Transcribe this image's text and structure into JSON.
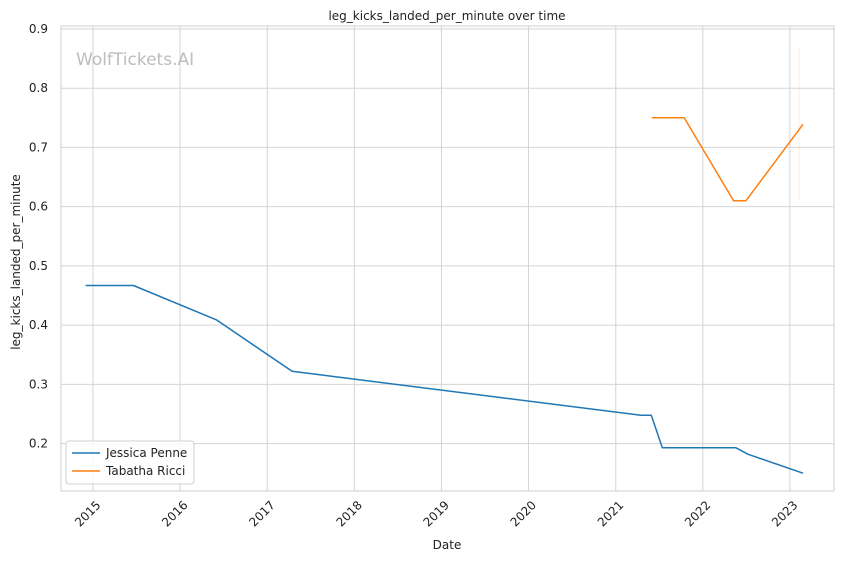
{
  "chart_data": {
    "type": "line",
    "title": "leg_kicks_landed_per_minute over time",
    "xlabel": "Date",
    "ylabel": "leg_kicks_landed_per_minute",
    "watermark": "WolfTickets.AI",
    "xlim": [
      "2014-08-20",
      "2023-07-05"
    ],
    "ylim": [
      0.12,
      0.905
    ],
    "x_ticks": [
      "2015",
      "2016",
      "2017",
      "2018",
      "2019",
      "2020",
      "2021",
      "2022",
      "2023"
    ],
    "y_ticks": [
      "0.2",
      "0.3",
      "0.4",
      "0.5",
      "0.6",
      "0.7",
      "0.8",
      "0.9"
    ],
    "grid": true,
    "legend_position": "lower-left",
    "series": [
      {
        "name": "Jessica Penne",
        "color": "#1f77b4",
        "points": [
          {
            "x": "2014-12-01",
            "y": 0.467
          },
          {
            "x": "2015-06-20",
            "y": 0.467
          },
          {
            "x": "2016-06-01",
            "y": 0.409
          },
          {
            "x": "2017-04-15",
            "y": 0.322
          },
          {
            "x": "2021-04-15",
            "y": 0.248
          },
          {
            "x": "2021-05-30",
            "y": 0.248
          },
          {
            "x": "2021-07-15",
            "y": 0.193
          },
          {
            "x": "2022-05-20",
            "y": 0.193
          },
          {
            "x": "2022-07-10",
            "y": 0.182
          },
          {
            "x": "2023-02-25",
            "y": 0.15
          }
        ]
      },
      {
        "name": "Tabatha Ricci",
        "color": "#ff7f0e",
        "points": [
          {
            "x": "2021-06-01",
            "y": 0.75
          },
          {
            "x": "2021-10-15",
            "y": 0.75
          },
          {
            "x": "2022-05-10",
            "y": 0.61
          },
          {
            "x": "2022-07-01",
            "y": 0.61
          },
          {
            "x": "2023-02-25",
            "y": 0.739
          }
        ]
      }
    ]
  }
}
